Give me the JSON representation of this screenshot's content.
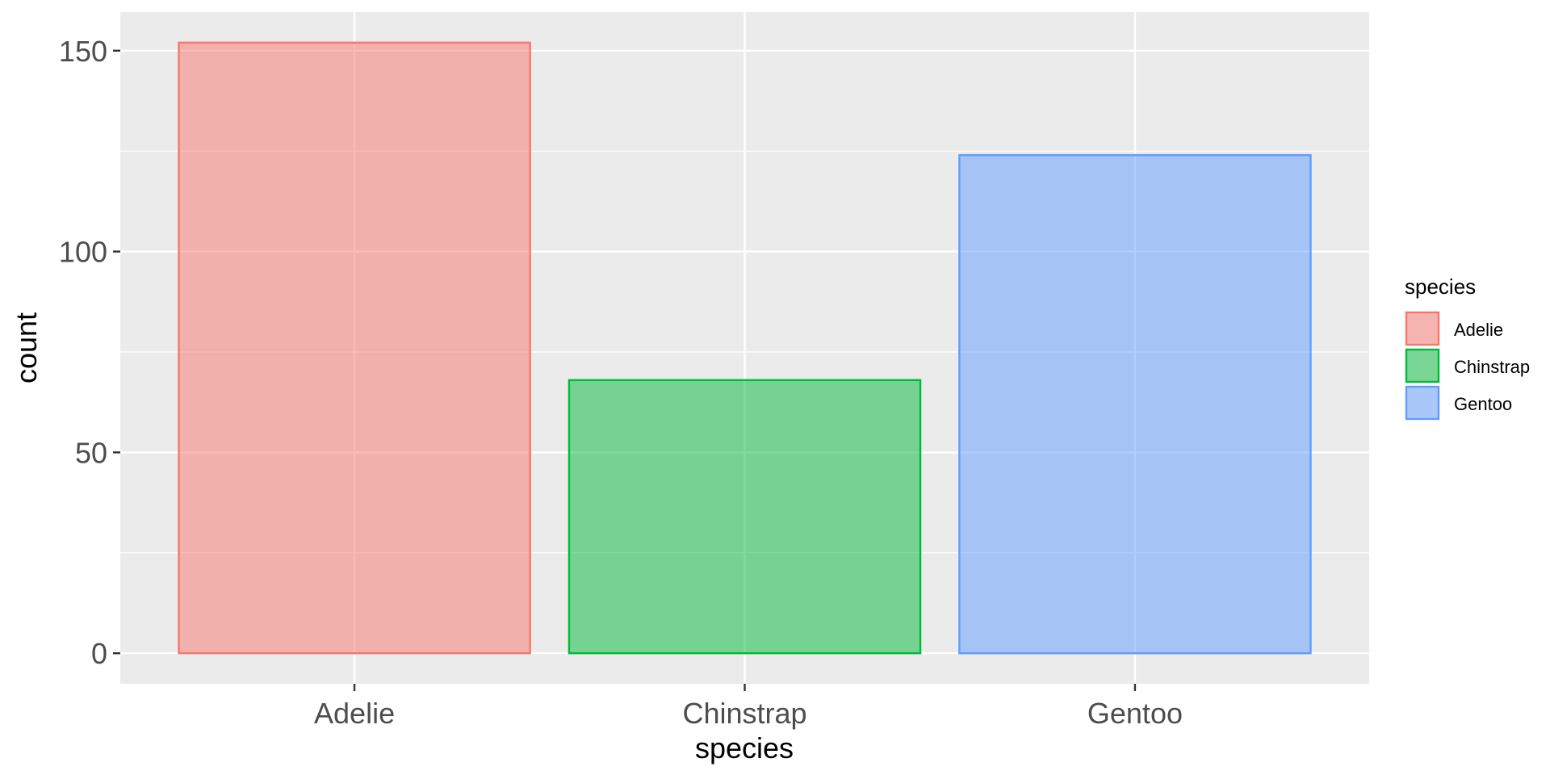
{
  "chart_data": {
    "type": "bar",
    "title": "",
    "xlabel": "species",
    "ylabel": "count",
    "categories": [
      "Adelie",
      "Chinstrap",
      "Gentoo"
    ],
    "values": [
      152,
      68,
      124
    ],
    "ylim": [
      -7.6,
      159.6
    ],
    "y_ticks": [
      0,
      50,
      100,
      150
    ],
    "y_tick_labels": [
      "0",
      "50",
      "100",
      "150"
    ],
    "grid": true,
    "legend": {
      "title": "species",
      "position": "right",
      "entries": [
        "Adelie",
        "Chinstrap",
        "Gentoo"
      ]
    },
    "colors": {
      "outline": [
        "#F8766D",
        "#00BA38",
        "#619CFF"
      ],
      "fill_opacity": 0.5,
      "panel_background": "#EBEBEB",
      "grid": "#FFFFFF"
    }
  }
}
